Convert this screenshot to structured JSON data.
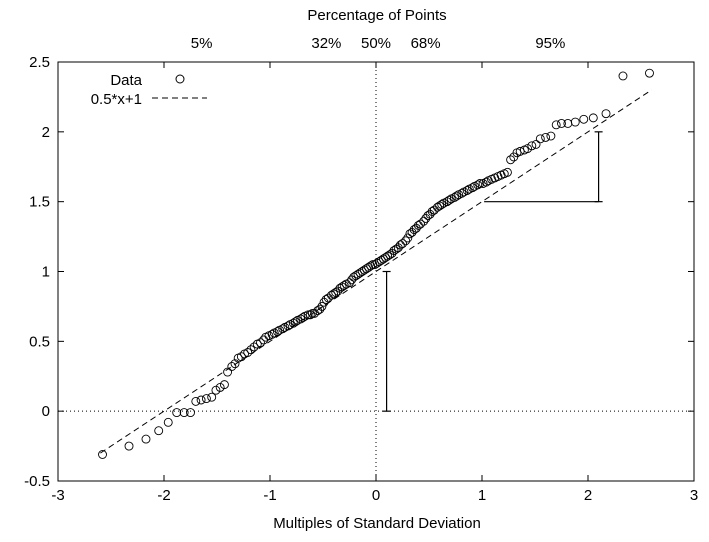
{
  "chart_data": {
    "type": "scatter",
    "title": "",
    "xlabel": "Multiples of Standard Deviation",
    "ylabel": "",
    "top_xlabel": "Percentage of Points",
    "xlim": [
      -3,
      3
    ],
    "ylim": [
      -0.5,
      2.5
    ],
    "x_ticks": [
      -3,
      -2,
      -1,
      0,
      1,
      2,
      3
    ],
    "x_tick_labels": [
      "-3",
      "-2",
      "-1",
      "0",
      "1",
      "2",
      "3"
    ],
    "y_ticks": [
      -0.5,
      0,
      0.5,
      1,
      1.5,
      2,
      2.5
    ],
    "y_tick_labels": [
      "-0.5",
      "0",
      "0.5",
      "1",
      "1.5",
      "2",
      "2.5"
    ],
    "top_ticks": [
      {
        "x": -1.645,
        "label": "5%"
      },
      {
        "x": -0.468,
        "label": "32%"
      },
      {
        "x": 0,
        "label": "50%"
      },
      {
        "x": 0.468,
        "label": "68%"
      },
      {
        "x": 1.645,
        "label": "95%"
      }
    ],
    "legend": {
      "position": "top-left",
      "entries": [
        "Data",
        "0.5*x+1"
      ]
    },
    "series": [
      {
        "name": "Data",
        "marker": "open-circle",
        "points": [
          [
            -2.58,
            -0.31
          ],
          [
            -2.33,
            -0.25
          ],
          [
            -2.17,
            -0.2
          ],
          [
            -2.05,
            -0.14
          ],
          [
            -1.96,
            -0.08
          ],
          [
            -1.88,
            -0.01
          ],
          [
            -1.81,
            -0.01
          ],
          [
            -1.75,
            -0.01
          ],
          [
            -1.7,
            0.07
          ],
          [
            -1.65,
            0.08
          ],
          [
            -1.6,
            0.09
          ],
          [
            -1.55,
            0.1
          ],
          [
            -1.51,
            0.15
          ],
          [
            -1.47,
            0.17
          ],
          [
            -1.43,
            0.19
          ],
          [
            -1.4,
            0.28
          ],
          [
            -1.36,
            0.32
          ],
          [
            -1.33,
            0.34
          ],
          [
            -1.3,
            0.38
          ],
          [
            -1.27,
            0.39
          ],
          [
            -1.24,
            0.41
          ],
          [
            -1.21,
            0.42
          ],
          [
            -1.18,
            0.44
          ],
          [
            -1.15,
            0.46
          ],
          [
            -1.12,
            0.48
          ],
          [
            -1.09,
            0.49
          ],
          [
            -1.06,
            0.51
          ],
          [
            -1.04,
            0.53
          ],
          [
            -1.01,
            0.54
          ],
          [
            -0.98,
            0.55
          ],
          [
            -0.96,
            0.56
          ],
          [
            -0.93,
            0.57
          ],
          [
            -0.91,
            0.58
          ],
          [
            -0.88,
            0.59
          ],
          [
            -0.86,
            0.6
          ],
          [
            -0.83,
            0.61
          ],
          [
            -0.81,
            0.62
          ],
          [
            -0.78,
            0.63
          ],
          [
            -0.76,
            0.64
          ],
          [
            -0.74,
            0.65
          ],
          [
            -0.71,
            0.66
          ],
          [
            -0.69,
            0.67
          ],
          [
            -0.67,
            0.68
          ],
          [
            -0.64,
            0.69
          ],
          [
            -0.62,
            0.69
          ],
          [
            -0.6,
            0.7
          ],
          [
            -0.58,
            0.7
          ],
          [
            -0.55,
            0.72
          ],
          [
            -0.53,
            0.73
          ],
          [
            -0.51,
            0.75
          ],
          [
            -0.49,
            0.78
          ],
          [
            -0.47,
            0.8
          ],
          [
            -0.45,
            0.81
          ],
          [
            -0.42,
            0.83
          ],
          [
            -0.4,
            0.84
          ],
          [
            -0.38,
            0.85
          ],
          [
            -0.36,
            0.86
          ],
          [
            -0.34,
            0.88
          ],
          [
            -0.32,
            0.89
          ],
          [
            -0.3,
            0.9
          ],
          [
            -0.28,
            0.91
          ],
          [
            -0.25,
            0.92
          ],
          [
            -0.23,
            0.94
          ],
          [
            -0.21,
            0.96
          ],
          [
            -0.19,
            0.97
          ],
          [
            -0.17,
            0.98
          ],
          [
            -0.15,
            0.99
          ],
          [
            -0.13,
            1.0
          ],
          [
            -0.11,
            1.01
          ],
          [
            -0.09,
            1.02
          ],
          [
            -0.07,
            1.03
          ],
          [
            -0.05,
            1.04
          ],
          [
            -0.03,
            1.05
          ],
          [
            -0.01,
            1.05
          ],
          [
            0.01,
            1.06
          ],
          [
            0.03,
            1.07
          ],
          [
            0.05,
            1.08
          ],
          [
            0.07,
            1.09
          ],
          [
            0.09,
            1.1
          ],
          [
            0.11,
            1.11
          ],
          [
            0.13,
            1.12
          ],
          [
            0.15,
            1.13
          ],
          [
            0.17,
            1.15
          ],
          [
            0.19,
            1.16
          ],
          [
            0.21,
            1.17
          ],
          [
            0.23,
            1.19
          ],
          [
            0.25,
            1.2
          ],
          [
            0.28,
            1.22
          ],
          [
            0.3,
            1.24
          ],
          [
            0.32,
            1.27
          ],
          [
            0.34,
            1.28
          ],
          [
            0.36,
            1.3
          ],
          [
            0.38,
            1.31
          ],
          [
            0.4,
            1.33
          ],
          [
            0.42,
            1.34
          ],
          [
            0.45,
            1.36
          ],
          [
            0.47,
            1.38
          ],
          [
            0.49,
            1.4
          ],
          [
            0.51,
            1.41
          ],
          [
            0.53,
            1.43
          ],
          [
            0.55,
            1.44
          ],
          [
            0.58,
            1.46
          ],
          [
            0.6,
            1.47
          ],
          [
            0.62,
            1.48
          ],
          [
            0.64,
            1.49
          ],
          [
            0.67,
            1.5
          ],
          [
            0.69,
            1.51
          ],
          [
            0.71,
            1.52
          ],
          [
            0.74,
            1.53
          ],
          [
            0.76,
            1.54
          ],
          [
            0.78,
            1.55
          ],
          [
            0.81,
            1.56
          ],
          [
            0.83,
            1.57
          ],
          [
            0.86,
            1.58
          ],
          [
            0.88,
            1.59
          ],
          [
            0.91,
            1.6
          ],
          [
            0.93,
            1.61
          ],
          [
            0.96,
            1.62
          ],
          [
            0.98,
            1.63
          ],
          [
            1.01,
            1.63
          ],
          [
            1.04,
            1.64
          ],
          [
            1.06,
            1.65
          ],
          [
            1.09,
            1.66
          ],
          [
            1.12,
            1.67
          ],
          [
            1.15,
            1.68
          ],
          [
            1.18,
            1.69
          ],
          [
            1.21,
            1.7
          ],
          [
            1.24,
            1.71
          ],
          [
            1.27,
            1.8
          ],
          [
            1.3,
            1.82
          ],
          [
            1.33,
            1.85
          ],
          [
            1.36,
            1.86
          ],
          [
            1.4,
            1.87
          ],
          [
            1.43,
            1.88
          ],
          [
            1.47,
            1.9
          ],
          [
            1.51,
            1.91
          ],
          [
            1.55,
            1.95
          ],
          [
            1.6,
            1.96
          ],
          [
            1.65,
            1.97
          ],
          [
            1.7,
            2.05
          ],
          [
            1.75,
            2.06
          ],
          [
            1.81,
            2.06
          ],
          [
            1.88,
            2.07
          ],
          [
            1.96,
            2.09
          ],
          [
            2.05,
            2.1
          ],
          [
            2.17,
            2.13
          ],
          [
            2.33,
            2.4
          ],
          [
            2.58,
            2.42
          ]
        ]
      },
      {
        "name": "0.5*x+1",
        "style": "dashed-line",
        "slope": 0.5,
        "intercept": 1,
        "x_range": [
          -2.6,
          2.6
        ]
      }
    ],
    "reference_lines": [
      {
        "orientation": "horizontal",
        "y": 0,
        "style": "dotted"
      },
      {
        "orientation": "vertical",
        "x": 0,
        "style": "dotted"
      }
    ],
    "annotations": [
      {
        "type": "vertical-bar",
        "x": 0.1,
        "y0": 0,
        "y1": 1
      },
      {
        "type": "horizontal-segment",
        "x0": 1.02,
        "x1": 2.1,
        "y": 1.5
      },
      {
        "type": "vertical-bar",
        "x": 2.1,
        "y0": 1.5,
        "y1": 2
      }
    ]
  }
}
